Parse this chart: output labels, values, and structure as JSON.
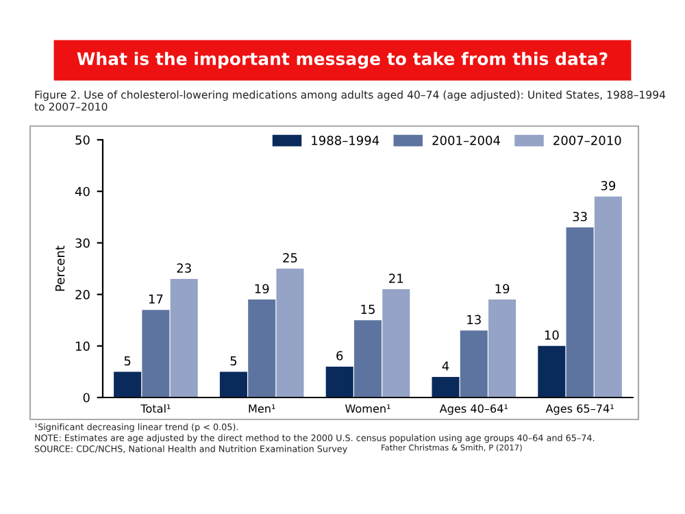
{
  "chart_data": {
    "type": "bar",
    "title": "What is the important message to take from this data?",
    "subtitle": "Figure 2. Use of cholesterol-lowering medications among adults aged 40–74 (age adjusted): United States, 1988–1994\nto 2007–2010",
    "ylabel": "Percent",
    "categories": [
      "Total¹",
      "Men¹",
      "Women¹",
      "Ages 40–64¹",
      "Ages 65–74¹"
    ],
    "series": [
      {
        "name": "1988–1994",
        "color": "#0a2a5c",
        "values": [
          5,
          5,
          6,
          4,
          10
        ]
      },
      {
        "name": "2001–2004",
        "color": "#5e74a0",
        "values": [
          17,
          19,
          15,
          13,
          33
        ]
      },
      {
        "name": "2007–2010",
        "color": "#94a3c6",
        "values": [
          23,
          25,
          21,
          19,
          39
        ]
      }
    ],
    "ylim": [
      0,
      50
    ],
    "yticks": [
      0,
      10,
      20,
      30,
      40,
      50
    ],
    "grid": false,
    "legend": "top right",
    "data_labels": true,
    "annotations": [
      "¹Significant decreasing linear trend (p < 0.05).",
      "NOTE: Estimates are age adjusted by the direct method to the 2000 U.S. census population using age groups 40–64 and 65–74.",
      "SOURCE: CDC/NCHS, National Health and Nutrition Examination Survey",
      "Father Christmas & Smith, P (2017)"
    ]
  }
}
